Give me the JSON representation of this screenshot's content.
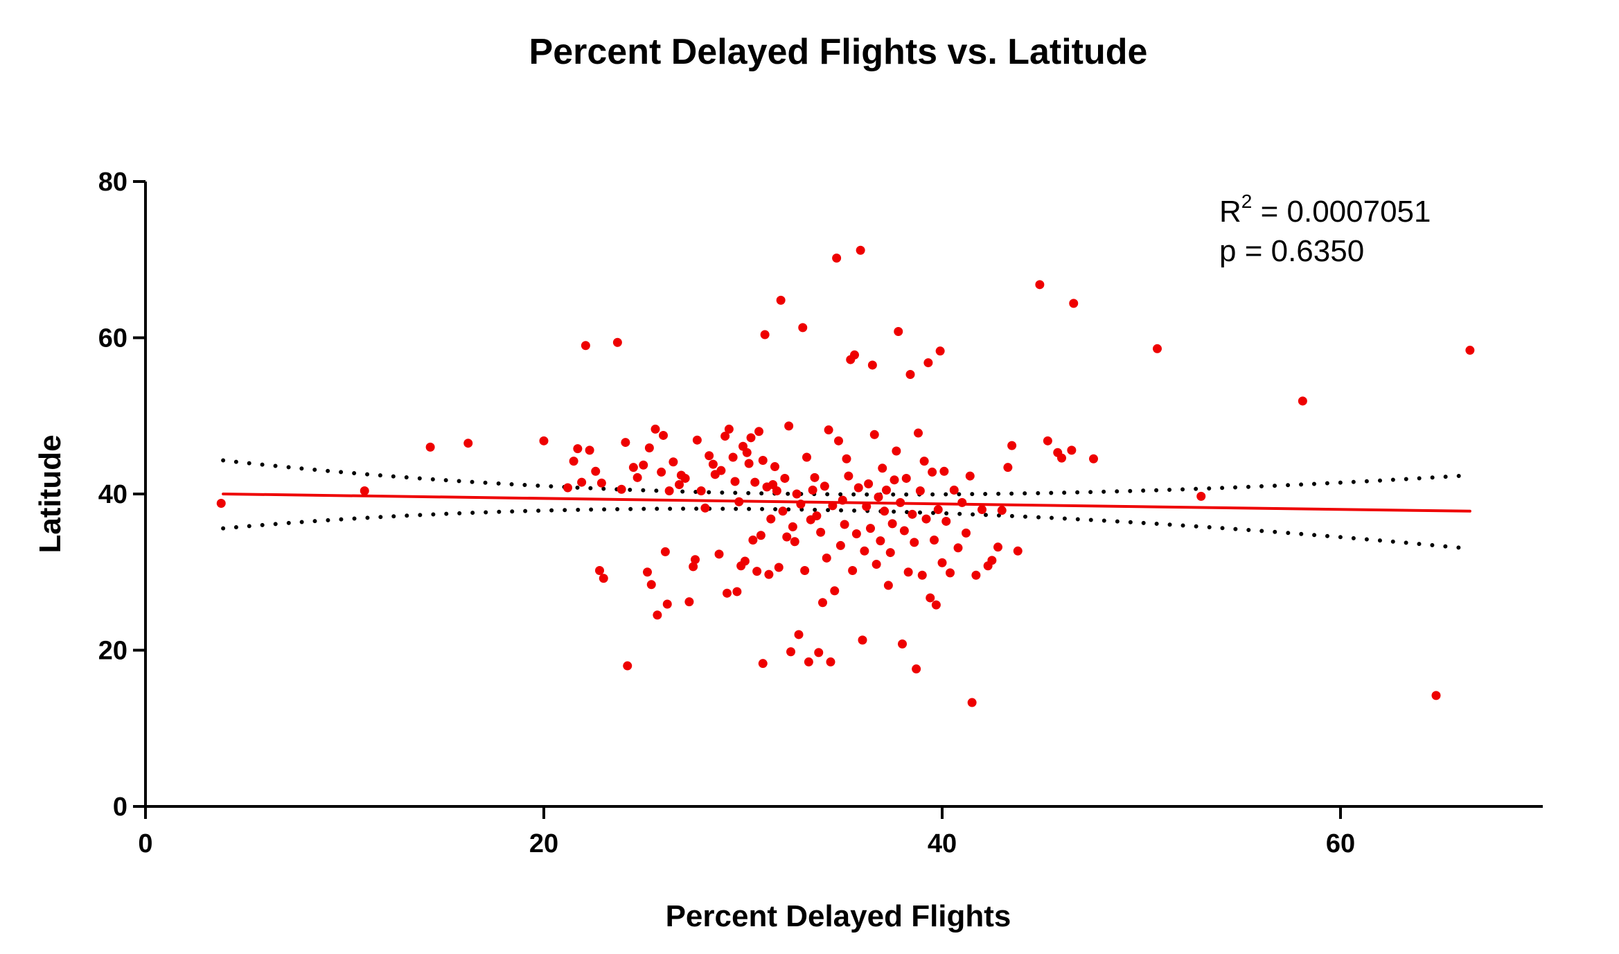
{
  "chart_data": {
    "type": "scatter",
    "title": "Percent Delayed Flights vs. Latitude",
    "xlabel": "Percent Delayed Flights",
    "ylabel": "Latitude",
    "xlim": [
      0,
      70
    ],
    "ylim": [
      0,
      80
    ],
    "xticks": [
      0,
      20,
      40,
      60
    ],
    "yticks": [
      0,
      20,
      40,
      60,
      80
    ],
    "grid": false,
    "colors": {
      "points": "#ee0000",
      "fit_line": "#ee0000",
      "confidence_band": "#000000"
    },
    "stats": {
      "r2_label": "R",
      "r2_sup": "2",
      "r2_value": " = 0.0007051",
      "p_text": "p = 0.6350"
    },
    "regression": {
      "x_start": 3.9,
      "y_start": 40.0,
      "x_end": 66.5,
      "y_end": 37.8
    },
    "confidence_band": {
      "upper": [
        [
          3.9,
          44.3
        ],
        [
          33.0,
          40.0
        ],
        [
          66.5,
          42.4
        ]
      ],
      "lower": [
        [
          3.9,
          35.6
        ],
        [
          33.0,
          38.0
        ],
        [
          66.5,
          33.0
        ]
      ]
    },
    "points": [
      [
        3.8,
        38.8
      ],
      [
        11.0,
        40.4
      ],
      [
        14.3,
        46.0
      ],
      [
        16.2,
        46.5
      ],
      [
        20.0,
        46.8
      ],
      [
        21.2,
        40.8
      ],
      [
        21.5,
        44.2
      ],
      [
        21.7,
        45.8
      ],
      [
        21.9,
        41.5
      ],
      [
        22.1,
        59.0
      ],
      [
        22.3,
        45.6
      ],
      [
        22.6,
        42.9
      ],
      [
        22.8,
        30.2
      ],
      [
        23.0,
        29.2
      ],
      [
        22.9,
        41.4
      ],
      [
        23.7,
        59.4
      ],
      [
        23.9,
        40.6
      ],
      [
        24.1,
        46.6
      ],
      [
        24.2,
        18.0
      ],
      [
        24.5,
        43.4
      ],
      [
        24.7,
        42.1
      ],
      [
        25.0,
        43.7
      ],
      [
        25.2,
        30.0
      ],
      [
        25.3,
        45.9
      ],
      [
        25.4,
        28.4
      ],
      [
        25.6,
        48.3
      ],
      [
        25.7,
        24.5
      ],
      [
        25.9,
        42.8
      ],
      [
        26.0,
        47.5
      ],
      [
        26.1,
        32.6
      ],
      [
        26.2,
        25.9
      ],
      [
        26.3,
        40.4
      ],
      [
        26.5,
        44.1
      ],
      [
        26.8,
        41.2
      ],
      [
        26.9,
        42.4
      ],
      [
        27.1,
        42.0
      ],
      [
        27.3,
        26.2
      ],
      [
        27.5,
        30.7
      ],
      [
        27.6,
        31.6
      ],
      [
        27.7,
        46.9
      ],
      [
        27.9,
        40.4
      ],
      [
        28.1,
        38.2
      ],
      [
        28.3,
        44.9
      ],
      [
        28.5,
        43.8
      ],
      [
        28.6,
        42.5
      ],
      [
        28.8,
        32.3
      ],
      [
        28.9,
        43.0
      ],
      [
        29.1,
        47.4
      ],
      [
        29.2,
        27.3
      ],
      [
        29.3,
        48.3
      ],
      [
        29.5,
        44.7
      ],
      [
        29.6,
        41.6
      ],
      [
        29.7,
        27.5
      ],
      [
        29.8,
        39.0
      ],
      [
        29.9,
        30.8
      ],
      [
        30.0,
        46.1
      ],
      [
        30.1,
        31.4
      ],
      [
        30.2,
        45.3
      ],
      [
        30.3,
        43.9
      ],
      [
        30.4,
        47.2
      ],
      [
        30.5,
        34.1
      ],
      [
        30.6,
        41.5
      ],
      [
        30.7,
        30.1
      ],
      [
        30.8,
        48.0
      ],
      [
        30.9,
        34.7
      ],
      [
        31.0,
        18.3
      ],
      [
        31.0,
        44.3
      ],
      [
        31.1,
        60.4
      ],
      [
        31.2,
        40.9
      ],
      [
        31.3,
        29.7
      ],
      [
        31.4,
        36.8
      ],
      [
        31.5,
        41.2
      ],
      [
        31.6,
        43.5
      ],
      [
        31.7,
        40.4
      ],
      [
        31.8,
        30.6
      ],
      [
        31.9,
        64.8
      ],
      [
        32.0,
        37.8
      ],
      [
        32.1,
        42.0
      ],
      [
        32.2,
        34.5
      ],
      [
        32.3,
        48.7
      ],
      [
        32.4,
        19.8
      ],
      [
        32.5,
        35.8
      ],
      [
        32.6,
        33.9
      ],
      [
        32.7,
        40.0
      ],
      [
        32.8,
        22.0
      ],
      [
        32.9,
        38.7
      ],
      [
        33.0,
        61.3
      ],
      [
        33.1,
        30.2
      ],
      [
        33.2,
        44.7
      ],
      [
        33.3,
        18.5
      ],
      [
        33.4,
        36.7
      ],
      [
        33.5,
        40.5
      ],
      [
        33.6,
        42.1
      ],
      [
        33.7,
        37.2
      ],
      [
        33.8,
        19.7
      ],
      [
        33.9,
        35.1
      ],
      [
        34.0,
        26.1
      ],
      [
        34.1,
        41.0
      ],
      [
        34.2,
        31.8
      ],
      [
        34.3,
        48.2
      ],
      [
        34.4,
        18.5
      ],
      [
        34.5,
        38.5
      ],
      [
        34.6,
        27.6
      ],
      [
        34.7,
        70.2
      ],
      [
        34.8,
        46.8
      ],
      [
        34.9,
        33.4
      ],
      [
        35.0,
        39.2
      ],
      [
        35.1,
        36.1
      ],
      [
        35.2,
        44.5
      ],
      [
        35.3,
        42.3
      ],
      [
        35.4,
        57.2
      ],
      [
        35.5,
        30.2
      ],
      [
        35.6,
        57.8
      ],
      [
        35.7,
        34.9
      ],
      [
        35.8,
        40.8
      ],
      [
        35.9,
        71.2
      ],
      [
        36.0,
        21.3
      ],
      [
        36.1,
        32.7
      ],
      [
        36.2,
        38.4
      ],
      [
        36.3,
        41.3
      ],
      [
        36.4,
        35.6
      ],
      [
        36.5,
        56.5
      ],
      [
        36.6,
        47.6
      ],
      [
        36.7,
        31.0
      ],
      [
        36.8,
        39.6
      ],
      [
        36.9,
        34.0
      ],
      [
        37.0,
        43.3
      ],
      [
        37.1,
        37.8
      ],
      [
        37.2,
        40.5
      ],
      [
        37.3,
        28.3
      ],
      [
        37.4,
        32.5
      ],
      [
        37.5,
        36.2
      ],
      [
        37.6,
        41.8
      ],
      [
        37.7,
        45.5
      ],
      [
        37.8,
        60.8
      ],
      [
        37.9,
        38.9
      ],
      [
        38.0,
        20.8
      ],
      [
        38.1,
        35.3
      ],
      [
        38.2,
        42.0
      ],
      [
        38.3,
        30.0
      ],
      [
        38.4,
        55.3
      ],
      [
        38.5,
        37.4
      ],
      [
        38.6,
        33.8
      ],
      [
        38.7,
        17.6
      ],
      [
        38.8,
        47.8
      ],
      [
        38.9,
        40.4
      ],
      [
        39.0,
        29.6
      ],
      [
        39.1,
        44.2
      ],
      [
        39.2,
        36.8
      ],
      [
        39.3,
        56.8
      ],
      [
        39.4,
        26.7
      ],
      [
        39.5,
        42.8
      ],
      [
        39.6,
        34.1
      ],
      [
        39.7,
        25.8
      ],
      [
        39.8,
        38.0
      ],
      [
        39.9,
        58.3
      ],
      [
        40.0,
        31.2
      ],
      [
        40.1,
        42.9
      ],
      [
        40.2,
        36.5
      ],
      [
        40.4,
        29.9
      ],
      [
        40.6,
        40.5
      ],
      [
        40.8,
        33.1
      ],
      [
        41.0,
        38.9
      ],
      [
        41.2,
        35.0
      ],
      [
        41.4,
        42.3
      ],
      [
        41.5,
        13.3
      ],
      [
        41.7,
        29.6
      ],
      [
        42.0,
        38.0
      ],
      [
        42.3,
        30.8
      ],
      [
        42.5,
        31.5
      ],
      [
        42.8,
        33.2
      ],
      [
        43.0,
        37.9
      ],
      [
        43.3,
        43.4
      ],
      [
        43.5,
        46.2
      ],
      [
        43.8,
        32.7
      ],
      [
        44.9,
        66.8
      ],
      [
        45.3,
        46.8
      ],
      [
        45.8,
        45.3
      ],
      [
        46.0,
        44.6
      ],
      [
        46.5,
        45.6
      ],
      [
        46.6,
        64.4
      ],
      [
        47.6,
        44.5
      ],
      [
        50.8,
        58.6
      ],
      [
        53.0,
        39.7
      ],
      [
        58.1,
        51.9
      ],
      [
        64.8,
        14.2
      ],
      [
        66.5,
        58.4
      ]
    ]
  }
}
